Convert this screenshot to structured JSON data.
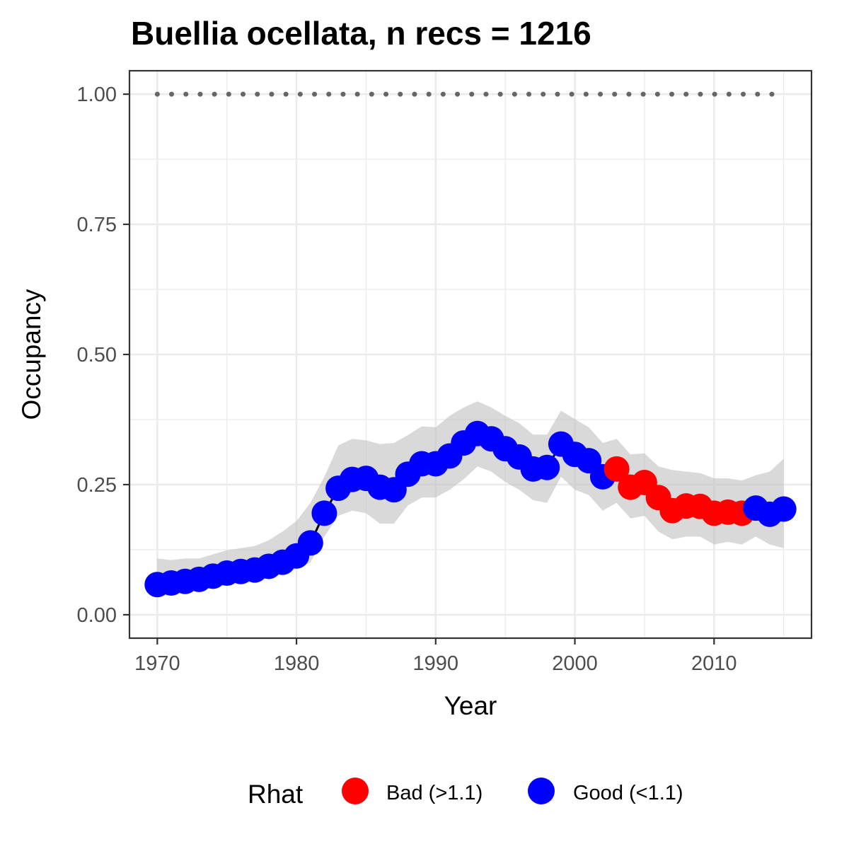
{
  "chart_data": {
    "type": "line",
    "title": "Buellia ocellata, n recs = 1216",
    "xlabel": "Year",
    "ylabel": "Occupancy",
    "xlim": [
      1968,
      2017
    ],
    "ylim": [
      -0.045,
      1.045
    ],
    "x_ticks": [
      1970,
      1980,
      1990,
      2000,
      2010
    ],
    "x_tick_labels": [
      "1970",
      "1980",
      "1990",
      "2000",
      "2010"
    ],
    "y_ticks": [
      0,
      0.25,
      0.5,
      0.75,
      1.0
    ],
    "y_tick_labels": [
      "0.00",
      "0.25",
      "0.50",
      "0.75",
      "1.00"
    ],
    "grid": true,
    "reference_line": {
      "y": 1.0,
      "style": "dotted",
      "color": "#666666"
    },
    "colors": {
      "bad": "#ff0000",
      "good": "#0000ff",
      "ribbon": "#bfbfbf",
      "line": "#000000"
    },
    "legend": {
      "position": "bottom",
      "title": "Rhat",
      "entries": [
        {
          "key": "bad",
          "label": "Bad (>1.1)"
        },
        {
          "key": "good",
          "label": "Good (<1.1)"
        }
      ]
    },
    "x": [
      1970,
      1971,
      1972,
      1973,
      1974,
      1975,
      1976,
      1977,
      1978,
      1979,
      1980,
      1981,
      1982,
      1983,
      1984,
      1985,
      1986,
      1987,
      1988,
      1989,
      1990,
      1991,
      1992,
      1993,
      1994,
      1995,
      1996,
      1997,
      1998,
      1999,
      2000,
      2001,
      2002,
      2003,
      2004,
      2005,
      2006,
      2007,
      2008,
      2009,
      2010,
      2011,
      2012,
      2013,
      2014,
      2015
    ],
    "y": [
      0.058,
      0.061,
      0.064,
      0.068,
      0.074,
      0.08,
      0.083,
      0.086,
      0.093,
      0.101,
      0.113,
      0.138,
      0.195,
      0.243,
      0.26,
      0.262,
      0.245,
      0.24,
      0.27,
      0.29,
      0.29,
      0.305,
      0.33,
      0.348,
      0.338,
      0.319,
      0.303,
      0.28,
      0.283,
      0.328,
      0.308,
      0.296,
      0.265,
      0.28,
      0.245,
      0.254,
      0.225,
      0.2,
      0.209,
      0.208,
      0.195,
      0.197,
      0.195,
      0.205,
      0.193,
      0.203
    ],
    "lower": [
      0.035,
      0.038,
      0.042,
      0.046,
      0.052,
      0.057,
      0.06,
      0.064,
      0.07,
      0.078,
      0.088,
      0.1,
      0.15,
      0.19,
      0.2,
      0.195,
      0.175,
      0.175,
      0.21,
      0.225,
      0.225,
      0.24,
      0.26,
      0.285,
      0.275,
      0.255,
      0.24,
      0.22,
      0.215,
      0.265,
      0.24,
      0.23,
      0.2,
      0.215,
      0.185,
      0.19,
      0.16,
      0.145,
      0.15,
      0.15,
      0.135,
      0.14,
      0.135,
      0.15,
      0.135,
      0.128
    ],
    "upper": [
      0.108,
      0.105,
      0.108,
      0.108,
      0.116,
      0.124,
      0.128,
      0.132,
      0.143,
      0.16,
      0.18,
      0.215,
      0.265,
      0.325,
      0.338,
      0.335,
      0.328,
      0.33,
      0.345,
      0.362,
      0.36,
      0.382,
      0.398,
      0.41,
      0.398,
      0.382,
      0.368,
      0.346,
      0.346,
      0.392,
      0.376,
      0.36,
      0.33,
      0.338,
      0.308,
      0.31,
      0.285,
      0.278,
      0.275,
      0.272,
      0.262,
      0.262,
      0.258,
      0.268,
      0.275,
      0.3
    ],
    "rhat": [
      "good",
      "good",
      "good",
      "good",
      "good",
      "good",
      "good",
      "good",
      "good",
      "good",
      "good",
      "good",
      "good",
      "good",
      "good",
      "good",
      "good",
      "good",
      "good",
      "good",
      "good",
      "good",
      "good",
      "good",
      "good",
      "good",
      "good",
      "good",
      "good",
      "good",
      "good",
      "good",
      "good",
      "bad",
      "bad",
      "bad",
      "bad",
      "bad",
      "bad",
      "bad",
      "bad",
      "bad",
      "bad",
      "good",
      "good",
      "good"
    ]
  }
}
